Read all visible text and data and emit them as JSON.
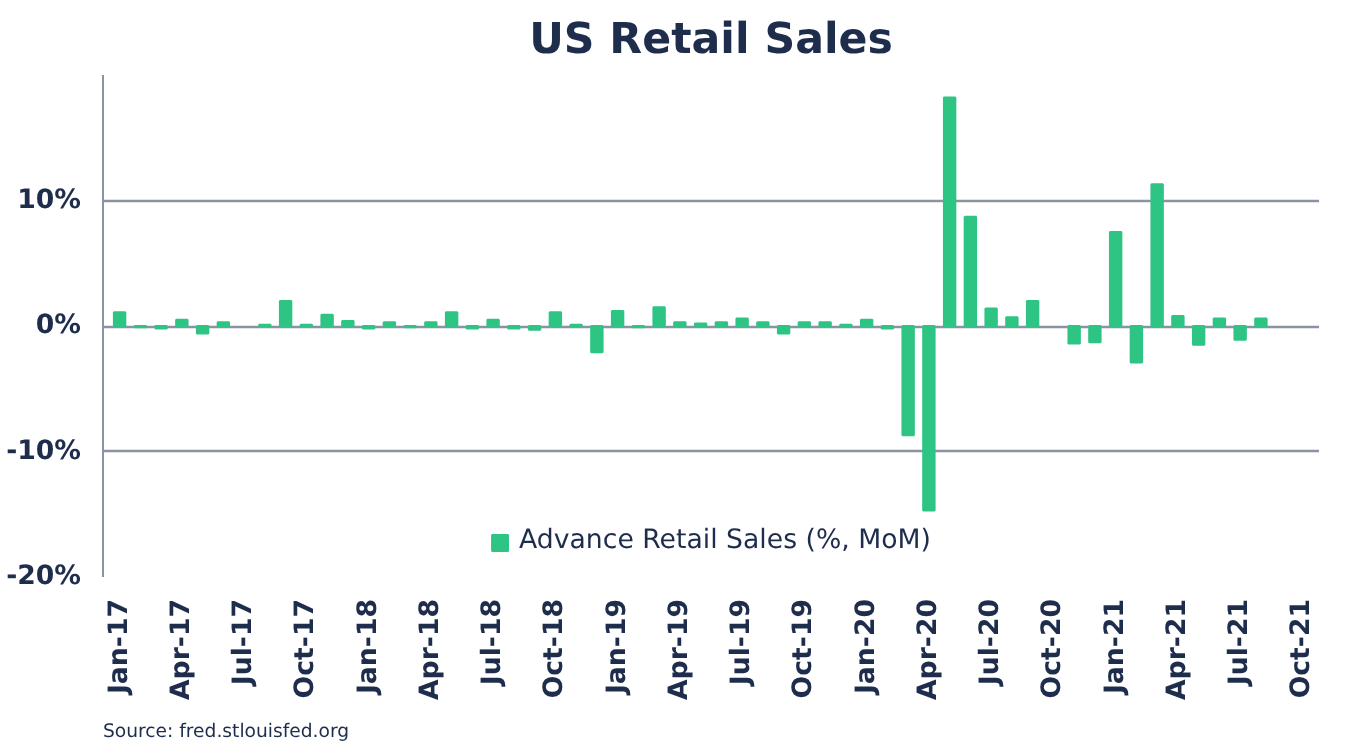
{
  "chart_data": {
    "type": "bar",
    "title": "US Retail Sales",
    "categories": [
      "Jan-17",
      null,
      null,
      "Apr-17",
      null,
      null,
      "Jul-17",
      null,
      null,
      "Oct-17",
      null,
      null,
      "Jan-18",
      null,
      null,
      "Apr-18",
      null,
      null,
      "Jul-18",
      null,
      null,
      "Oct-18",
      null,
      null,
      "Jan-19",
      null,
      null,
      "Apr-19",
      null,
      null,
      "Jul-19",
      null,
      null,
      "Oct-19",
      null,
      null,
      "Jan-20",
      null,
      null,
      "Apr-20",
      null,
      null,
      "Jul-20",
      null,
      null,
      "Oct-20",
      null,
      null,
      "Jan-21",
      null,
      null,
      "Apr-21",
      null,
      null,
      "Jul-21",
      null,
      null,
      "Oct-21"
    ],
    "series": [
      {
        "name": "Advance Retail Sales (%, MoM)",
        "color": "#2ec483",
        "values": [
          1.1,
          -0.1,
          -0.2,
          0.5,
          -0.6,
          0.3,
          null,
          0.1,
          2.0,
          0.1,
          0.9,
          0.4,
          -0.2,
          0.3,
          -0.1,
          0.3,
          1.1,
          -0.2,
          0.5,
          -0.2,
          -0.3,
          1.1,
          0.1,
          -2.1,
          1.2,
          -0.1,
          1.5,
          0.3,
          0.2,
          0.3,
          0.6,
          0.3,
          -0.6,
          0.3,
          0.3,
          0.1,
          0.5,
          -0.2,
          -8.7,
          -14.7,
          18.2,
          8.7,
          1.4,
          0.7,
          2.0,
          null,
          -1.4,
          -1.3,
          7.5,
          -2.9,
          11.3,
          0.8,
          -1.5,
          0.6,
          -1.1,
          0.6,
          null,
          null
        ]
      }
    ],
    "ylim": [
      -20,
      20
    ],
    "yticks": [
      {
        "value": -20,
        "label": "-20%"
      },
      {
        "value": -10,
        "label": "-10%"
      },
      {
        "value": 0,
        "label": "0%"
      },
      {
        "value": 10,
        "label": "10%"
      }
    ],
    "grid": "y",
    "legend": "bottom",
    "annotations": [
      "Source: fred.stlouisfed.org"
    ]
  }
}
